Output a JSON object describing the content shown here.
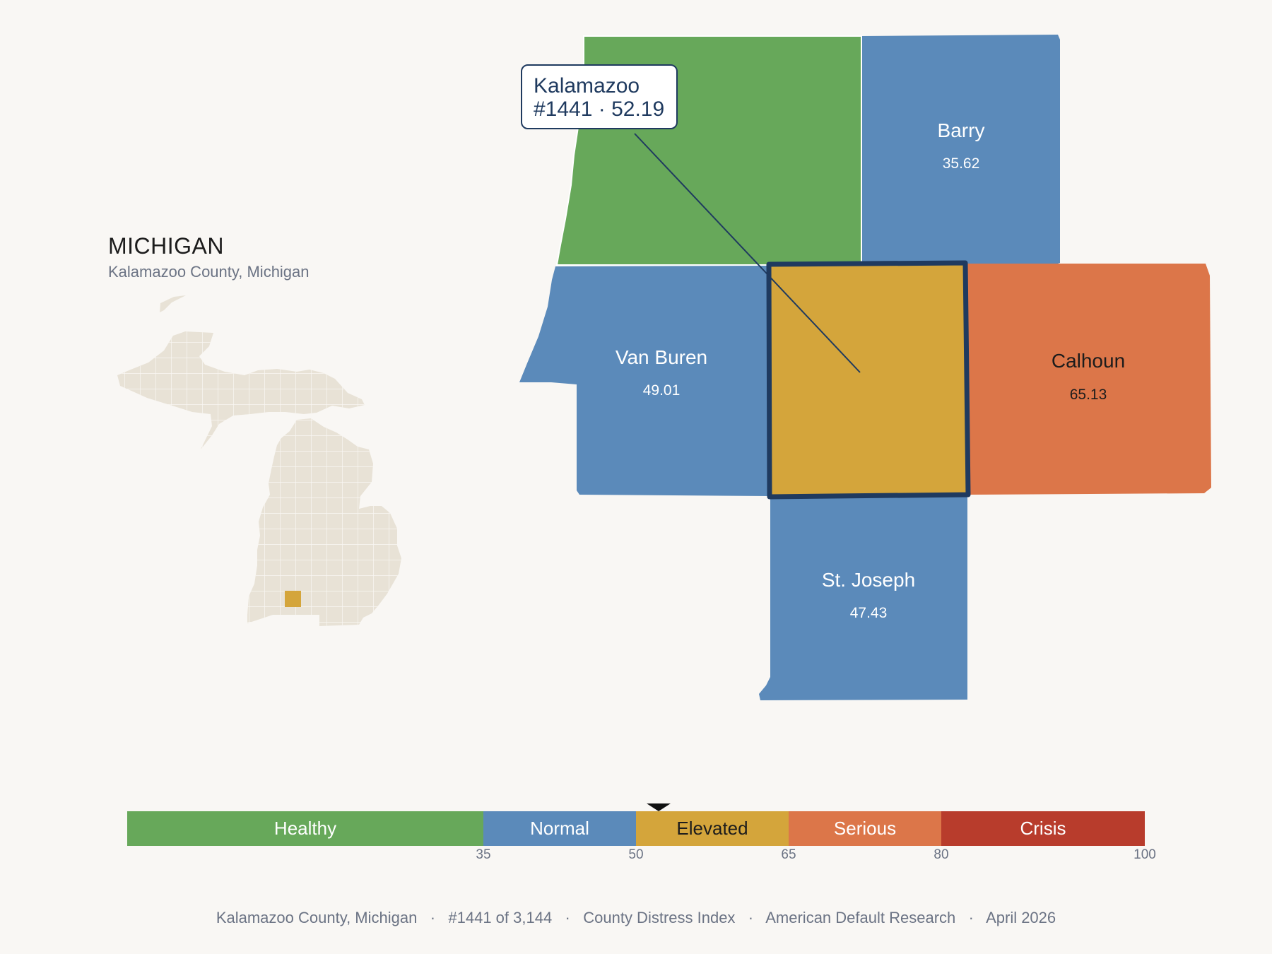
{
  "state": {
    "title": "MICHIGAN",
    "subtitle": "Kalamazoo County, Michigan"
  },
  "callout": {
    "line1": "Kalamazoo",
    "line2": "#1441 · 52.19"
  },
  "counties": [
    {
      "id": "allegan",
      "name": "",
      "score": "",
      "category": "Healthy",
      "color": "#67a85a"
    },
    {
      "id": "barry",
      "name": "Barry",
      "score": "35.62",
      "category": "Normal",
      "color": "#5b8aba"
    },
    {
      "id": "van-buren",
      "name": "Van Buren",
      "score": "49.01",
      "category": "Normal",
      "color": "#5b8aba"
    },
    {
      "id": "kalamazoo",
      "name": "Kalamazoo",
      "score": "52.19",
      "category": "Elevated",
      "color": "#d4a53b",
      "selected": true
    },
    {
      "id": "calhoun",
      "name": "Calhoun",
      "score": "65.13",
      "category": "Serious",
      "color": "#dc7649"
    },
    {
      "id": "st-joseph",
      "name": "St. Joseph",
      "score": "47.43",
      "category": "Normal",
      "color": "#5b8aba"
    }
  ],
  "scale": {
    "segments": [
      {
        "label": "Healthy",
        "from": 0,
        "to": 35,
        "color": "#67a85a"
      },
      {
        "label": "Normal",
        "from": 35,
        "to": 50,
        "color": "#5b8aba"
      },
      {
        "label": "Elevated",
        "from": 50,
        "to": 65,
        "color": "#d4a53b"
      },
      {
        "label": "Serious",
        "from": 65,
        "to": 80,
        "color": "#dc7649"
      },
      {
        "label": "Crisis",
        "from": 80,
        "to": 100,
        "color": "#b83c2c"
      }
    ],
    "ticks": [
      "35",
      "50",
      "65",
      "80",
      "100"
    ],
    "marker_value": 52.19
  },
  "footer": {
    "county": "Kalamazoo County, Michigan",
    "rank": "#1441 of 3,144",
    "index": "County Distress Index",
    "source": "American Default Research",
    "date": "April 2026"
  },
  "colors": {
    "background": "#f9f7f4",
    "highlight_border": "#1f3a5f",
    "state_fill": "#e8e2d6"
  }
}
